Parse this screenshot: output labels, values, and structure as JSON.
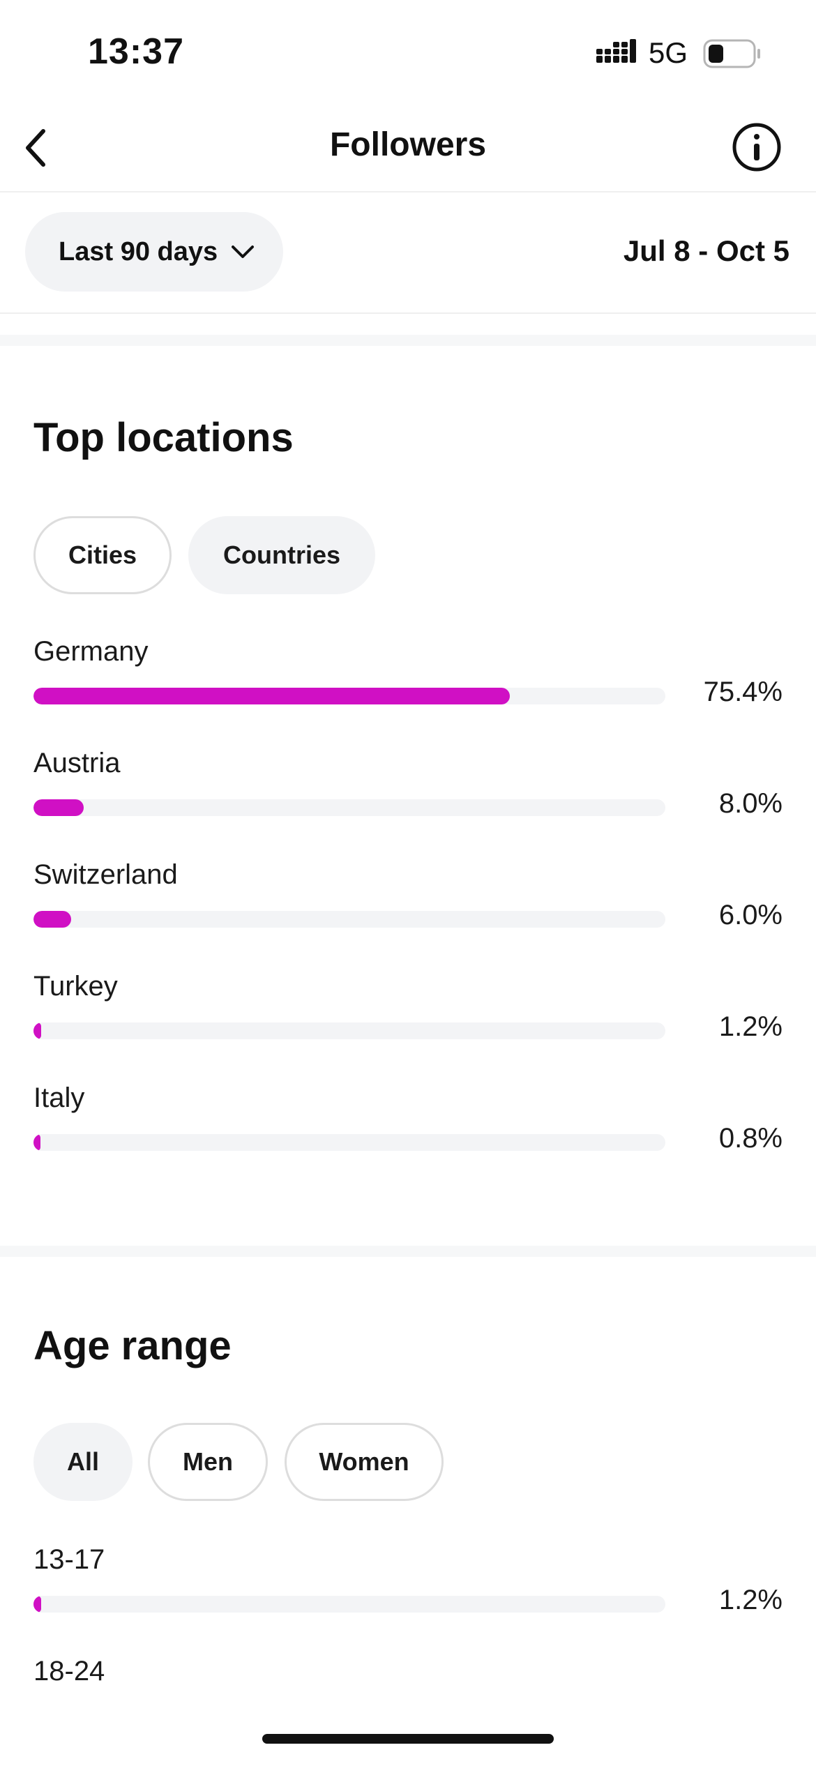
{
  "status_bar": {
    "time": "13:37",
    "network": "5G",
    "battery_level": 0.35,
    "icons": [
      "signal-icon",
      "battery-icon"
    ]
  },
  "header": {
    "title": "Followers",
    "icons": [
      "back-icon",
      "info-icon"
    ]
  },
  "filter": {
    "range_label": "Last 90 days",
    "date_range": "Jul 8 - Oct 5",
    "icons": [
      "chevron-down-icon"
    ]
  },
  "top_locations": {
    "title": "Top locations",
    "tabs": [
      {
        "label": "Cities",
        "selected": false
      },
      {
        "label": "Countries",
        "selected": true
      }
    ],
    "items": [
      {
        "label": "Germany",
        "value": "75.4%",
        "percent": 75.4
      },
      {
        "label": "Austria",
        "value": "8.0%",
        "percent": 8.0
      },
      {
        "label": "Switzerland",
        "value": "6.0%",
        "percent": 6.0
      },
      {
        "label": "Turkey",
        "value": "1.2%",
        "percent": 1.2
      },
      {
        "label": "Italy",
        "value": "0.8%",
        "percent": 0.8
      }
    ]
  },
  "age_range": {
    "title": "Age range",
    "tabs": [
      {
        "label": "All",
        "selected": true
      },
      {
        "label": "Men",
        "selected": false
      },
      {
        "label": "Women",
        "selected": false
      }
    ],
    "items": [
      {
        "label": "13-17",
        "value": "1.2%",
        "percent": 1.2
      },
      {
        "label": "18-24"
      }
    ]
  },
  "colors": {
    "accent": "#d010c4",
    "track": "#f3f4f6",
    "chip_fill": "#f2f3f5",
    "chip_border": "#dddddd"
  }
}
